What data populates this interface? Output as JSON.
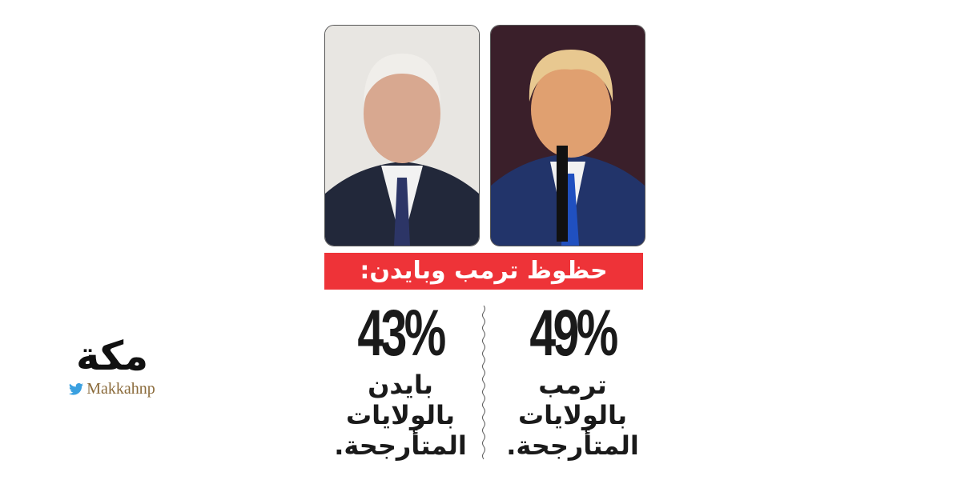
{
  "banner": {
    "title": "حظوظ ترمب وبايدن:",
    "color": "#ee3338"
  },
  "candidates": [
    {
      "name": "بايدن",
      "percent": "43%",
      "line2": "بالولايات",
      "line3": "المتأرجحة."
    },
    {
      "name": "ترمب",
      "percent": "49%",
      "line2": "بالولايات",
      "line3": "المتأرجحة."
    }
  ],
  "logo": {
    "mark": "مكة",
    "handle": "Makkahnp",
    "icon": "twitter-bird-icon"
  }
}
